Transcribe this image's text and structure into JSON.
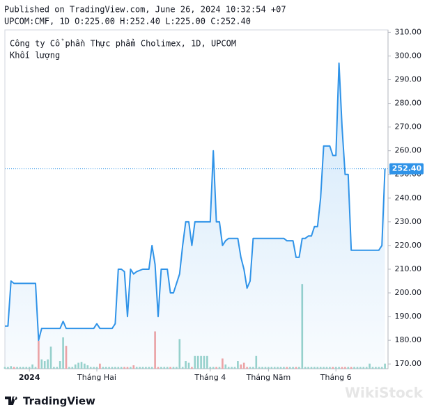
{
  "header": {
    "line1": "Published on TradingView.com, June 26, 2024 10:32:54 +07",
    "line2": "UPCOM:CMF, 1D O:225.00 H:252.40 L:225.00 C:252.40"
  },
  "chart_data": {
    "type": "line",
    "series": [
      {
        "name": "Công ty Cổ phần Thực phẩm Cholimex, 1D, UPCOM",
        "color": "#2f93e8",
        "values": [
          186,
          186,
          205,
          204,
          204,
          204,
          204,
          204,
          204,
          204,
          204,
          180,
          185,
          185,
          185,
          185,
          185,
          185,
          185,
          188,
          185,
          185,
          185,
          185,
          185,
          185,
          185,
          185,
          185,
          185,
          187,
          185,
          185,
          185,
          185,
          185,
          187,
          210,
          210,
          209,
          190,
          210,
          208,
          209,
          209.5,
          210,
          210,
          210,
          220,
          212,
          190,
          210,
          210,
          210,
          200,
          200,
          204,
          208,
          220,
          230,
          230,
          220,
          230,
          230,
          230,
          230,
          230,
          230,
          260,
          230,
          230,
          220,
          222,
          223,
          223,
          223,
          223,
          215,
          210,
          202,
          205,
          223,
          223,
          223,
          223,
          223,
          223,
          223,
          223,
          223,
          223,
          223,
          222,
          222,
          222,
          215,
          215,
          223,
          223,
          224,
          224,
          228,
          228,
          240,
          262,
          262,
          262,
          258,
          258,
          297,
          270,
          250,
          250,
          218,
          218,
          218,
          218,
          218,
          218,
          218,
          218,
          218,
          218,
          220,
          252.4
        ]
      },
      {
        "name": "Khối lượng",
        "type": "bar",
        "axis": "y2",
        "up_color": "#9ad3cb",
        "down_color": "#f2a3a3",
        "values": [
          2,
          2,
          3,
          2,
          2,
          2,
          2,
          2,
          2,
          5,
          2,
          33,
          11,
          9,
          11,
          26,
          2,
          2,
          9,
          37,
          27,
          2,
          2,
          5,
          7,
          8,
          6,
          4,
          2,
          2,
          2,
          6,
          2,
          2,
          2,
          2,
          2,
          2,
          2,
          2,
          2,
          2,
          4,
          2,
          2,
          2,
          2,
          2,
          2,
          44,
          2,
          2,
          2,
          2,
          2,
          2,
          2,
          35,
          2,
          9,
          7,
          2,
          15,
          15,
          15,
          15,
          15,
          2,
          2,
          2,
          2,
          12,
          5,
          2,
          2,
          2,
          9,
          5,
          7,
          2,
          2,
          2,
          15,
          2,
          2,
          2,
          2,
          2,
          2,
          2,
          2,
          2,
          2,
          2,
          2,
          2,
          2,
          100,
          2,
          2,
          2,
          2,
          2,
          2,
          2,
          2,
          2,
          2,
          2,
          2,
          2,
          2,
          2,
          2,
          2,
          2,
          2,
          2,
          2,
          6,
          2,
          2,
          2,
          2,
          6
        ]
      }
    ],
    "xlim": [
      0,
      125
    ],
    "xticks": [
      {
        "value": 8,
        "label": "2024"
      },
      {
        "value": 30,
        "label": "Tháng Hai"
      },
      {
        "value": 67,
        "label": "Tháng 4"
      },
      {
        "value": 86,
        "label": "Tháng Năm"
      },
      {
        "value": 108,
        "label": "Tháng 6"
      }
    ],
    "ylim": [
      168,
      311
    ],
    "yticks": [
      {
        "value": 170,
        "label": "170.00"
      },
      {
        "value": 180,
        "label": "180.00"
      },
      {
        "value": 190,
        "label": "190.00"
      },
      {
        "value": 200,
        "label": "200.00"
      },
      {
        "value": 210,
        "label": "210.00"
      },
      {
        "value": 220,
        "label": "220.00"
      },
      {
        "value": 230,
        "label": "230.00"
      },
      {
        "value": 240,
        "label": "240.00"
      },
      {
        "value": 250,
        "label": "250.00"
      },
      {
        "value": 260,
        "label": "260.00"
      },
      {
        "value": 270,
        "label": "270.00"
      },
      {
        "value": 280,
        "label": "280.00"
      },
      {
        "value": 290,
        "label": "290.00"
      },
      {
        "value": 300,
        "label": "300.00"
      },
      {
        "value": 310,
        "label": "310.00"
      }
    ],
    "y2lim": [
      0,
      400
    ],
    "last_value_label": "252.40",
    "grid": false
  },
  "footer": {
    "brand": "TradingView",
    "watermark": "WikiStock"
  }
}
